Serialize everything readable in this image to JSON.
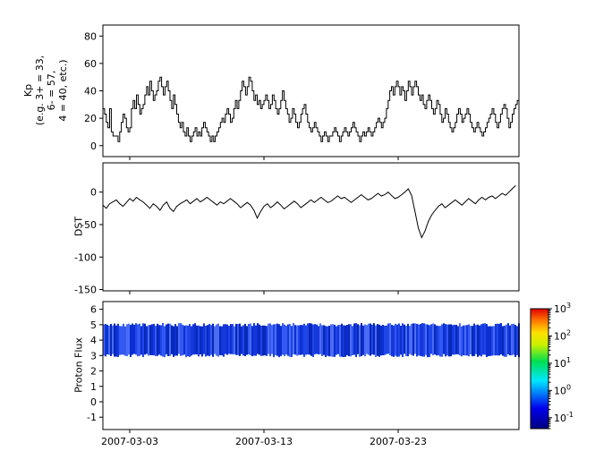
{
  "colors": {
    "line": "#000000",
    "panel_bg": "#ffffff",
    "frame": "#000000"
  },
  "chart_data": [
    {
      "type": "line",
      "style": "step",
      "name": "kp",
      "ylabel_lines": [
        "Kp",
        "(e.g. 3+ = 33,",
        "6- = 57,",
        "4 = 40, etc.)"
      ],
      "ylim": [
        -8,
        88
      ],
      "yticks": [
        0,
        20,
        40,
        60,
        80
      ],
      "x_range": [
        0,
        31
      ],
      "samples_per_day": 8,
      "xticks": [
        {
          "t": 2,
          "label": "2007-03-03"
        },
        {
          "t": 12,
          "label": "2007-03-13"
        },
        {
          "t": 22,
          "label": "2007-03-23"
        }
      ],
      "values": [
        27,
        23,
        17,
        13,
        27,
        10,
        7,
        7,
        7,
        3,
        10,
        17,
        23,
        20,
        13,
        10,
        13,
        27,
        33,
        27,
        37,
        30,
        23,
        27,
        30,
        37,
        43,
        37,
        47,
        40,
        33,
        37,
        40,
        47,
        50,
        43,
        37,
        43,
        47,
        40,
        33,
        27,
        37,
        30,
        23,
        17,
        13,
        17,
        10,
        7,
        13,
        7,
        3,
        7,
        10,
        13,
        7,
        10,
        7,
        13,
        17,
        13,
        10,
        7,
        3,
        7,
        3,
        7,
        10,
        13,
        17,
        20,
        17,
        23,
        27,
        23,
        17,
        20,
        27,
        33,
        27,
        33,
        40,
        47,
        43,
        37,
        43,
        50,
        47,
        40,
        33,
        37,
        30,
        33,
        27,
        30,
        33,
        37,
        33,
        27,
        30,
        37,
        33,
        27,
        23,
        27,
        33,
        40,
        33,
        27,
        23,
        17,
        20,
        27,
        23,
        17,
        13,
        17,
        23,
        27,
        30,
        23,
        17,
        13,
        10,
        13,
        17,
        13,
        10,
        7,
        3,
        7,
        10,
        7,
        3,
        7,
        7,
        10,
        13,
        10,
        7,
        3,
        7,
        10,
        13,
        10,
        7,
        10,
        13,
        17,
        13,
        10,
        7,
        3,
        7,
        10,
        7,
        10,
        13,
        10,
        7,
        10,
        13,
        17,
        20,
        17,
        13,
        17,
        20,
        27,
        33,
        40,
        43,
        37,
        43,
        47,
        43,
        37,
        43,
        40,
        33,
        40,
        47,
        43,
        37,
        43,
        47,
        43,
        37,
        33,
        37,
        30,
        27,
        33,
        37,
        33,
        27,
        23,
        27,
        33,
        30,
        23,
        17,
        20,
        27,
        23,
        17,
        13,
        10,
        13,
        17,
        23,
        27,
        23,
        17,
        20,
        23,
        27,
        23,
        17,
        13,
        10,
        13,
        17,
        13,
        10,
        7,
        10,
        13,
        17,
        20,
        23,
        27,
        23,
        17,
        13,
        17,
        23,
        27,
        30,
        27,
        20,
        13,
        17,
        23,
        27,
        30,
        33
      ]
    },
    {
      "type": "line",
      "style": "linear",
      "name": "dst",
      "ylabel": "DST",
      "ylim": [
        -152,
        45
      ],
      "yticks": [
        -150,
        -100,
        -50,
        0
      ],
      "samples_per_day": 4,
      "values": [
        -20,
        -25,
        -18,
        -15,
        -12,
        -18,
        -22,
        -16,
        -10,
        -14,
        -8,
        -12,
        -15,
        -20,
        -25,
        -18,
        -22,
        -28,
        -20,
        -15,
        -25,
        -30,
        -22,
        -18,
        -15,
        -12,
        -18,
        -14,
        -10,
        -15,
        -12,
        -8,
        -12,
        -16,
        -20,
        -15,
        -18,
        -14,
        -10,
        -14,
        -18,
        -24,
        -20,
        -16,
        -20,
        -28,
        -40,
        -30,
        -22,
        -18,
        -24,
        -20,
        -15,
        -20,
        -26,
        -22,
        -18,
        -14,
        -18,
        -24,
        -20,
        -16,
        -12,
        -16,
        -12,
        -8,
        -12,
        -16,
        -14,
        -10,
        -6,
        -10,
        -8,
        -12,
        -16,
        -12,
        -8,
        -4,
        -8,
        -12,
        -10,
        -6,
        -2,
        -6,
        -4,
        0,
        -5,
        -10,
        -8,
        -4,
        0,
        5,
        -5,
        -30,
        -55,
        -70,
        -60,
        -45,
        -35,
        -28,
        -22,
        -18,
        -24,
        -20,
        -16,
        -12,
        -16,
        -20,
        -15,
        -10,
        -14,
        -18,
        -12,
        -8,
        -12,
        -8,
        -6,
        -10,
        -6,
        -2,
        -5,
        0,
        5,
        10
      ]
    },
    {
      "type": "heatmap",
      "name": "proton_flux",
      "ylabel": "Proton Flux",
      "ylim": [
        -1.8,
        6.5
      ],
      "yticks": [
        -1,
        0,
        1,
        2,
        3,
        4,
        5,
        6
      ],
      "band": {
        "y_low": 3,
        "y_high": 5,
        "colors": [
          "#0b2fd0",
          "#1f46e8",
          "#0828b8",
          "#3458f2",
          "#1538dc",
          "#4a6cf5"
        ]
      },
      "colorbar": {
        "scale": "log",
        "tick_exponents": [
          3,
          2,
          1,
          0,
          -1
        ],
        "range_exponents": [
          -1.4,
          3
        ],
        "gradient_bottom_to_top": [
          [
            0,
            "#000080"
          ],
          [
            0.17,
            "#0000ee"
          ],
          [
            0.4,
            "#00e8ff"
          ],
          [
            0.56,
            "#00e050"
          ],
          [
            0.7,
            "#c8f000"
          ],
          [
            0.8,
            "#ffe000"
          ],
          [
            0.9,
            "#ff7800"
          ],
          [
            1,
            "#e00000"
          ]
        ]
      }
    }
  ]
}
